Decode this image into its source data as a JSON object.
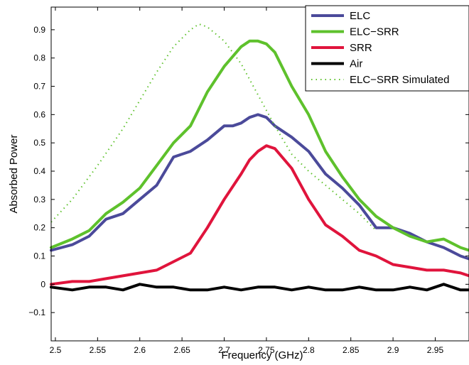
{
  "chart_data": {
    "type": "line",
    "xlabel": "Frequency (GHz)",
    "ylabel": "Absorbed Power",
    "xlim": [
      2.495,
      2.99
    ],
    "ylim": [
      -0.2,
      0.98
    ],
    "xticks": [
      "2.5",
      "2.55",
      "2.6",
      "2.65",
      "2.7",
      "2.75",
      "2.8",
      "2.85",
      "2.9",
      "2.95"
    ],
    "yticks": [
      "−0.1",
      "0",
      "0.1",
      "0.2",
      "0.3",
      "0.4",
      "0.5",
      "0.6",
      "0.7",
      "0.8",
      "0.9"
    ],
    "grid": false,
    "legend_position": "top-right",
    "series": [
      {
        "name": "ELC",
        "color": "#4b4a9a",
        "style": "solid",
        "x": [
          2.495,
          2.52,
          2.54,
          2.56,
          2.58,
          2.6,
          2.62,
          2.64,
          2.66,
          2.68,
          2.7,
          2.71,
          2.72,
          2.73,
          2.74,
          2.75,
          2.76,
          2.78,
          2.8,
          2.82,
          2.84,
          2.86,
          2.87,
          2.88,
          2.9,
          2.92,
          2.94,
          2.96,
          2.98,
          2.99
        ],
        "y": [
          0.12,
          0.14,
          0.17,
          0.23,
          0.25,
          0.3,
          0.35,
          0.45,
          0.47,
          0.51,
          0.56,
          0.56,
          0.57,
          0.59,
          0.6,
          0.59,
          0.56,
          0.52,
          0.47,
          0.39,
          0.34,
          0.28,
          0.24,
          0.2,
          0.2,
          0.18,
          0.15,
          0.13,
          0.1,
          0.09
        ]
      },
      {
        "name": "ELC−SRR",
        "color": "#5ec12c",
        "style": "solid",
        "x": [
          2.495,
          2.52,
          2.54,
          2.56,
          2.58,
          2.6,
          2.62,
          2.64,
          2.66,
          2.68,
          2.7,
          2.72,
          2.73,
          2.74,
          2.75,
          2.76,
          2.78,
          2.8,
          2.82,
          2.84,
          2.86,
          2.88,
          2.9,
          2.92,
          2.94,
          2.96,
          2.98,
          2.99
        ],
        "y": [
          0.13,
          0.16,
          0.19,
          0.25,
          0.29,
          0.34,
          0.42,
          0.5,
          0.56,
          0.68,
          0.77,
          0.84,
          0.86,
          0.86,
          0.85,
          0.82,
          0.7,
          0.6,
          0.47,
          0.38,
          0.3,
          0.24,
          0.2,
          0.17,
          0.15,
          0.16,
          0.13,
          0.12
        ]
      },
      {
        "name": "SRR",
        "color": "#e0143c",
        "style": "solid",
        "x": [
          2.495,
          2.52,
          2.54,
          2.56,
          2.58,
          2.6,
          2.62,
          2.64,
          2.66,
          2.68,
          2.7,
          2.72,
          2.73,
          2.74,
          2.75,
          2.76,
          2.78,
          2.8,
          2.82,
          2.84,
          2.86,
          2.88,
          2.9,
          2.92,
          2.94,
          2.96,
          2.98,
          2.99
        ],
        "y": [
          0.0,
          0.01,
          0.01,
          0.02,
          0.03,
          0.04,
          0.05,
          0.08,
          0.11,
          0.2,
          0.3,
          0.39,
          0.44,
          0.47,
          0.49,
          0.48,
          0.41,
          0.3,
          0.21,
          0.17,
          0.12,
          0.1,
          0.07,
          0.06,
          0.05,
          0.05,
          0.04,
          0.03
        ]
      },
      {
        "name": "Air",
        "color": "#000000",
        "style": "solid",
        "x": [
          2.495,
          2.52,
          2.54,
          2.56,
          2.58,
          2.6,
          2.62,
          2.64,
          2.66,
          2.68,
          2.7,
          2.72,
          2.74,
          2.76,
          2.78,
          2.8,
          2.82,
          2.84,
          2.86,
          2.88,
          2.9,
          2.92,
          2.94,
          2.96,
          2.98,
          2.99
        ],
        "y": [
          -0.01,
          -0.02,
          -0.01,
          -0.01,
          -0.02,
          0.0,
          -0.01,
          -0.01,
          -0.02,
          -0.02,
          -0.01,
          -0.02,
          -0.01,
          -0.01,
          -0.02,
          -0.01,
          -0.02,
          -0.02,
          -0.01,
          -0.02,
          -0.02,
          -0.01,
          -0.02,
          0.0,
          -0.02,
          -0.02
        ]
      },
      {
        "name": "ELC−SRR Simulated",
        "color": "#5ec12c",
        "style": "dotted",
        "x": [
          2.495,
          2.52,
          2.55,
          2.58,
          2.6,
          2.62,
          2.64,
          2.66,
          2.67,
          2.68,
          2.7,
          2.72,
          2.74,
          2.76,
          2.78,
          2.8,
          2.82,
          2.84,
          2.86,
          2.88
        ],
        "y": [
          0.22,
          0.3,
          0.42,
          0.55,
          0.65,
          0.75,
          0.84,
          0.9,
          0.92,
          0.91,
          0.86,
          0.78,
          0.67,
          0.56,
          0.46,
          0.4,
          0.35,
          0.3,
          0.25,
          0.19
        ]
      }
    ]
  }
}
